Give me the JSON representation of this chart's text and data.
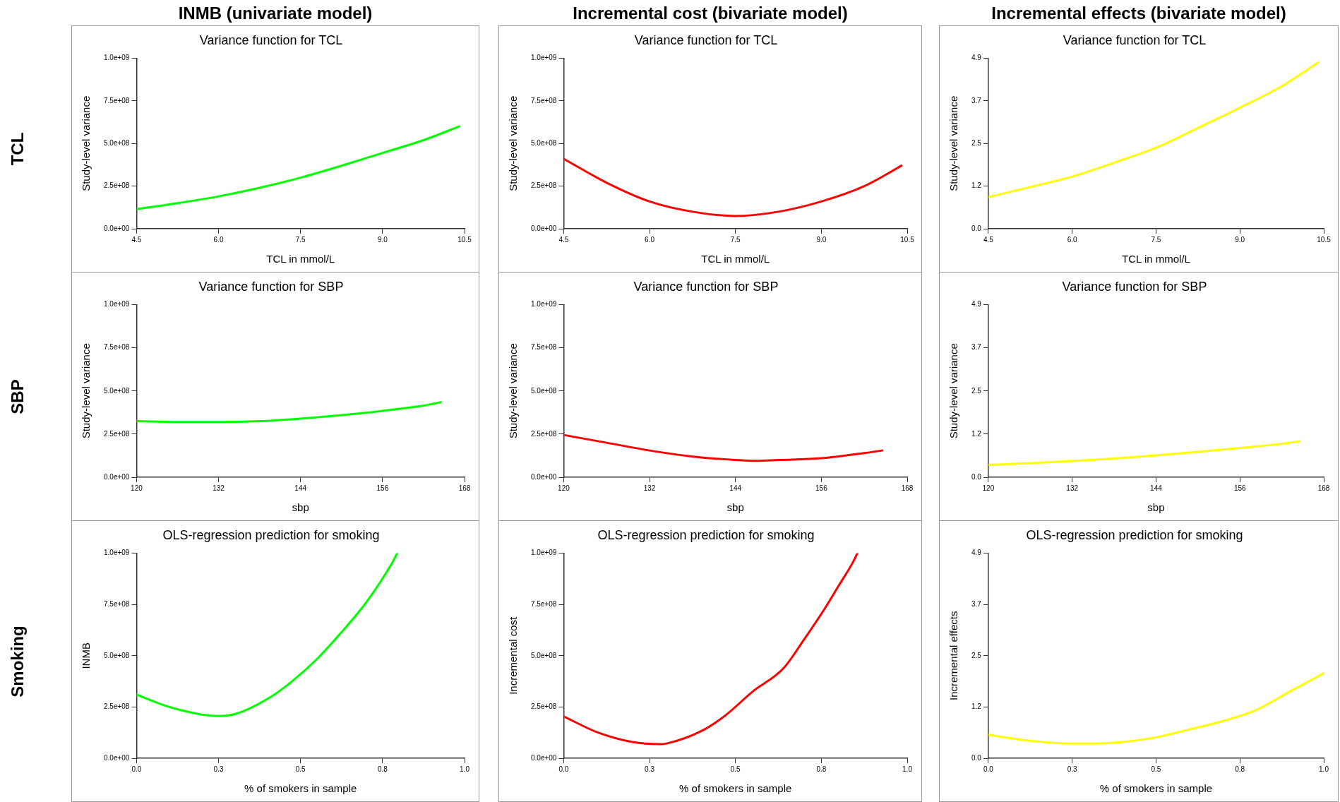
{
  "chart_data": [
    {
      "type": "line",
      "title": "Variance function for TCL",
      "xlabel": "TCL in mmol/L",
      "ylabel": "Study-level variance",
      "annotations": [
        "INMB (univariate model)",
        "TCL"
      ],
      "x": [
        4.5,
        5.25,
        6.0,
        6.75,
        7.5,
        8.25,
        9.0,
        9.75,
        10.4
      ],
      "series": [
        {
          "color": "#00ff00",
          "values": [
            115000000,
            150000000,
            190000000,
            240000000,
            300000000,
            370000000,
            445000000,
            520000000,
            600000000
          ]
        }
      ],
      "xlim": [
        4.5,
        10.5
      ],
      "xticks": [
        4.5,
        {
          "value": 6,
          "label": "6.0"
        },
        7.5,
        {
          "value": 9,
          "label": "9.0"
        },
        10.5
      ],
      "ylim": [
        0,
        1000000000
      ],
      "yticks": [
        {
          "value": 0,
          "label": "0.0e+00"
        },
        {
          "value": 250000000,
          "label": "2.5e+08"
        },
        {
          "value": 500000000,
          "label": "5.0e+08"
        },
        {
          "value": 750000000,
          "label": "7.5e+08"
        },
        {
          "value": 1000000000,
          "label": "1.0e+09"
        }
      ],
      "grid": false,
      "legend": false,
      "marker": "none"
    },
    {
      "type": "line",
      "title": "Variance function for TCL",
      "xlabel": "TCL in mmol/L",
      "ylabel": "Study-level variance",
      "annotations": [
        "Incremental cost (bivariate model)"
      ],
      "x": [
        4.5,
        5.25,
        6.0,
        6.75,
        7.5,
        8.25,
        9.0,
        9.75,
        10.4
      ],
      "series": [
        {
          "color": "#ff0000",
          "values": [
            410000000,
            270000000,
            160000000,
            100000000,
            75000000,
            100000000,
            160000000,
            250000000,
            370000000
          ]
        }
      ],
      "xlim": [
        4.5,
        10.5
      ],
      "xticks": [
        4.5,
        {
          "value": 6,
          "label": "6.0"
        },
        7.5,
        {
          "value": 9,
          "label": "9.0"
        },
        10.5
      ],
      "ylim": [
        0,
        1000000000
      ],
      "yticks": [
        {
          "value": 0,
          "label": "0.0e+00"
        },
        {
          "value": 250000000,
          "label": "2.5e+08"
        },
        {
          "value": 500000000,
          "label": "5.0e+08"
        },
        {
          "value": 750000000,
          "label": "7.5e+08"
        },
        {
          "value": 1000000000,
          "label": "1.0e+09"
        }
      ],
      "grid": false,
      "legend": false,
      "marker": "none"
    },
    {
      "type": "line",
      "title": "Variance function for TCL",
      "xlabel": "TCL in mmol/L",
      "ylabel": "Study-level variance",
      "annotations": [
        "Incremental effects (bivariate model)"
      ],
      "x": [
        4.5,
        5.25,
        6.0,
        6.75,
        7.5,
        8.25,
        9.0,
        9.75,
        10.4
      ],
      "series": [
        {
          "color": "#ffff00",
          "values": [
            0.91,
            1.2,
            1.5,
            1.9,
            2.33,
            2.9,
            3.48,
            4.1,
            4.78
          ]
        }
      ],
      "xlim": [
        4.5,
        10.5
      ],
      "xticks": [
        4.5,
        {
          "value": 6,
          "label": "6.0"
        },
        7.5,
        {
          "value": 9,
          "label": "9.0"
        },
        10.5
      ],
      "ylim": [
        0,
        4.9
      ],
      "yticks": [
        {
          "value": 0,
          "label": "0.0"
        },
        {
          "value": 1.225,
          "label": "1.2"
        },
        {
          "value": 2.45,
          "label": "2.5"
        },
        {
          "value": 3.675,
          "label": "3.7"
        },
        {
          "value": 4.9,
          "label": "4.9"
        }
      ],
      "grid": false,
      "legend": false,
      "marker": "none"
    },
    {
      "type": "line",
      "title": "Variance function for SBP",
      "xlabel": "sbp",
      "ylabel": "Study-level variance",
      "annotations": [
        "SBP"
      ],
      "x": [
        120,
        126,
        132,
        138,
        144,
        150,
        156,
        162,
        164.5
      ],
      "series": [
        {
          "color": "#00ff00",
          "values": [
            325000000,
            320000000,
            320000000,
            325000000,
            340000000,
            360000000,
            385000000,
            415000000,
            435000000
          ]
        }
      ],
      "xlim": [
        120,
        168
      ],
      "xticks": [
        120,
        132,
        144,
        156,
        168
      ],
      "ylim": [
        0,
        1000000000
      ],
      "yticks": [
        {
          "value": 0,
          "label": "0.0e+00"
        },
        {
          "value": 250000000,
          "label": "2.5e+08"
        },
        {
          "value": 500000000,
          "label": "5.0e+08"
        },
        {
          "value": 750000000,
          "label": "7.5e+08"
        },
        {
          "value": 1000000000,
          "label": "1.0e+09"
        }
      ],
      "grid": false,
      "legend": false,
      "marker": "none"
    },
    {
      "type": "line",
      "title": "Variance function for SBP",
      "xlabel": "sbp",
      "ylabel": "Study-level variance",
      "x": [
        120,
        126,
        132,
        138,
        144,
        147,
        150,
        156,
        162,
        164.5
      ],
      "series": [
        {
          "color": "#ff0000",
          "values": [
            245000000,
            200000000,
            155000000,
            120000000,
            100000000,
            95000000,
            100000000,
            110000000,
            140000000,
            155000000
          ]
        }
      ],
      "xlim": [
        120,
        168
      ],
      "xticks": [
        120,
        132,
        144,
        156,
        168
      ],
      "ylim": [
        0,
        1000000000
      ],
      "yticks": [
        {
          "value": 0,
          "label": "0.0e+00"
        },
        {
          "value": 250000000,
          "label": "2.5e+08"
        },
        {
          "value": 500000000,
          "label": "5.0e+08"
        },
        {
          "value": 750000000,
          "label": "7.5e+08"
        },
        {
          "value": 1000000000,
          "label": "1.0e+09"
        }
      ],
      "grid": false,
      "legend": false,
      "marker": "none"
    },
    {
      "type": "line",
      "title": "Variance function for SBP",
      "xlabel": "sbp",
      "ylabel": "Study-level variance",
      "x": [
        120,
        126,
        132,
        138,
        144,
        150,
        156,
        162,
        164.5
      ],
      "series": [
        {
          "color": "#ffff00",
          "values": [
            0.35,
            0.4,
            0.46,
            0.53,
            0.62,
            0.72,
            0.83,
            0.95,
            1.02
          ]
        }
      ],
      "xlim": [
        120,
        168
      ],
      "xticks": [
        120,
        132,
        144,
        156,
        168
      ],
      "ylim": [
        0,
        4.9
      ],
      "yticks": [
        {
          "value": 0,
          "label": "0.0"
        },
        {
          "value": 1.225,
          "label": "1.2"
        },
        {
          "value": 2.45,
          "label": "2.5"
        },
        {
          "value": 3.675,
          "label": "3.7"
        },
        {
          "value": 4.9,
          "label": "4.9"
        }
      ],
      "grid": false,
      "legend": false,
      "marker": "none"
    },
    {
      "type": "line",
      "title": "OLS-regression prediction for smoking",
      "xlabel": "% of smokers in sample",
      "ylabel": "INMB",
      "annotations": [
        "Smoking"
      ],
      "x": [
        0,
        0.1,
        0.2,
        0.25,
        0.3,
        0.4,
        0.47,
        0.55,
        0.62,
        0.7,
        0.78,
        0.795
      ],
      "series": [
        {
          "color": "#00ff00",
          "values": [
            310000000,
            250000000,
            213000000,
            206000000,
            215000000,
            290000000,
            370000000,
            484000000,
            606000000,
            760000000,
            955000000,
            1000000000
          ]
        }
      ],
      "xlim": [
        0,
        1
      ],
      "xticks": [
        {
          "value": 0,
          "label": "0.0"
        },
        {
          "value": 0.25,
          "label": "0.3"
        },
        0.5,
        {
          "value": 0.75,
          "label": "0.8"
        },
        {
          "value": 1,
          "label": "1.0"
        }
      ],
      "ylim": [
        0,
        1000000000
      ],
      "yticks": [
        {
          "value": 0,
          "label": "0.0e+00"
        },
        {
          "value": 250000000,
          "label": "2.5e+08"
        },
        {
          "value": 500000000,
          "label": "5.0e+08"
        },
        {
          "value": 750000000,
          "label": "7.5e+08"
        },
        {
          "value": 1000000000,
          "label": "1.0e+09"
        }
      ],
      "grid": false,
      "legend": false,
      "marker": "none"
    },
    {
      "type": "line",
      "title": "OLS-regression prediction for smoking",
      "xlabel": "% of smokers in sample",
      "ylabel": "Incremental cost",
      "x": [
        0,
        0.1,
        0.2,
        0.28,
        0.3,
        0.4,
        0.47,
        0.55,
        0.64,
        0.7,
        0.76,
        0.8,
        0.84,
        0.855
      ],
      "series": [
        {
          "color": "#ff0000",
          "values": [
            204000000,
            125000000,
            79000000,
            69000000,
            72000000,
            132000000,
            208000000,
            325000000,
            439000000,
            580000000,
            730000000,
            840000000,
            950000000,
            1000000000
          ]
        }
      ],
      "xlim": [
        0,
        1
      ],
      "xticks": [
        {
          "value": 0,
          "label": "0.0"
        },
        {
          "value": 0.25,
          "label": "0.3"
        },
        0.5,
        {
          "value": 0.75,
          "label": "0.8"
        },
        {
          "value": 1,
          "label": "1.0"
        }
      ],
      "ylim": [
        0,
        1000000000
      ],
      "yticks": [
        {
          "value": 0,
          "label": "0.0e+00"
        },
        {
          "value": 250000000,
          "label": "2.5e+08"
        },
        {
          "value": 500000000,
          "label": "5.0e+08"
        },
        {
          "value": 750000000,
          "label": "7.5e+08"
        },
        {
          "value": 1000000000,
          "label": "1.0e+09"
        }
      ],
      "grid": false,
      "legend": false,
      "marker": "none"
    },
    {
      "type": "line",
      "title": "OLS-regression prediction for smoking",
      "xlabel": "% of smokers in sample",
      "ylabel": "Incremental effects",
      "x": [
        0,
        0.1,
        0.25,
        0.3,
        0.4,
        0.5,
        0.6,
        0.7,
        0.8,
        0.9,
        1.0
      ],
      "series": [
        {
          "color": "#ffff00",
          "values": [
            0.56,
            0.44,
            0.35,
            0.35,
            0.39,
            0.5,
            0.69,
            0.89,
            1.16,
            1.6,
            2.03
          ]
        }
      ],
      "xlim": [
        0,
        1
      ],
      "xticks": [
        {
          "value": 0,
          "label": "0.0"
        },
        {
          "value": 0.25,
          "label": "0.3"
        },
        0.5,
        {
          "value": 0.75,
          "label": "0.8"
        },
        {
          "value": 1,
          "label": "1.0"
        }
      ],
      "ylim": [
        0,
        4.9
      ],
      "yticks": [
        {
          "value": 0,
          "label": "0.0"
        },
        {
          "value": 1.225,
          "label": "1.2"
        },
        {
          "value": 2.45,
          "label": "2.5"
        },
        {
          "value": 3.675,
          "label": "3.7"
        },
        {
          "value": 4.9,
          "label": "4.9"
        }
      ],
      "grid": false,
      "legend": false,
      "marker": "none"
    }
  ]
}
